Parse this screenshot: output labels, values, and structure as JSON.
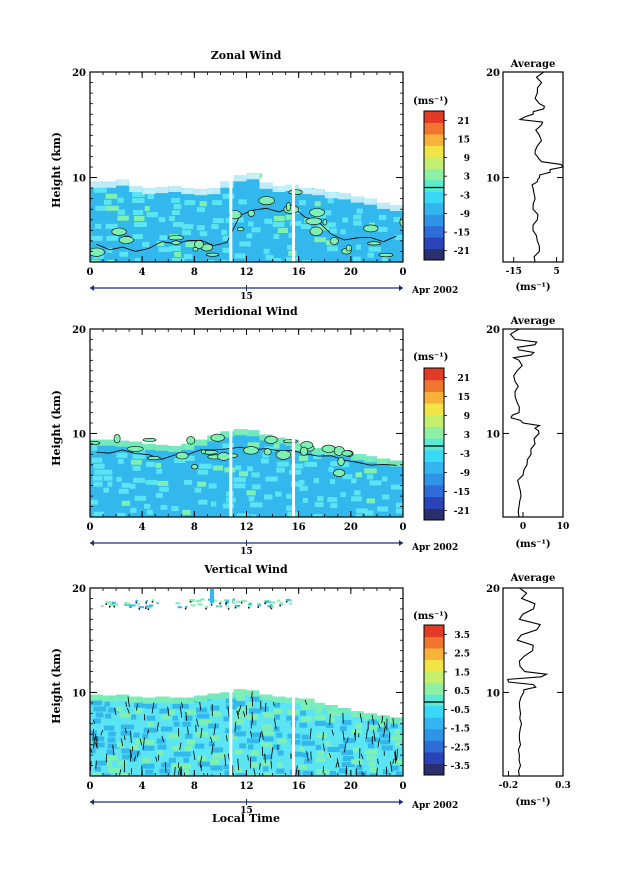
{
  "colors": {
    "scale": [
      "#2b2f6e",
      "#2a44b8",
      "#2e6cd8",
      "#2f93e6",
      "#33b6f0",
      "#38d8f7",
      "#5de8d2",
      "#8ef0a4",
      "#c5ef6e",
      "#f1e446",
      "#f7b23a",
      "#f0752f",
      "#e23a26"
    ],
    "field_dark": "#33b8ee",
    "field_light": "#5be4f4",
    "field_green": "#7ef0b2"
  },
  "figure": {
    "xlabel": "Local Time",
    "date_label": "Apr 2002",
    "date_tick": "15",
    "panels": [
      {
        "title": "Zonal Wind",
        "ylabel": "Height (km)",
        "unit": "(ms⁻¹)",
        "colorbar_ticks": [
          "21",
          "15",
          "9",
          "3",
          "-3",
          "-9",
          "-15",
          "-21"
        ],
        "profile_title": "Average",
        "profile_xlabel": "(ms⁻¹)",
        "profile_xticks": [
          "-15",
          "5"
        ]
      },
      {
        "title": "Meridional Wind",
        "ylabel": "Height (km)",
        "unit": "(ms⁻¹)",
        "colorbar_ticks": [
          "21",
          "15",
          "9",
          "3",
          "-3",
          "-9",
          "-15",
          "-21"
        ],
        "profile_title": "Average",
        "profile_xlabel": "(ms⁻¹)",
        "profile_xticks": [
          "0",
          "10"
        ]
      },
      {
        "title": "Vertical Wind",
        "ylabel": "Height (km)",
        "unit": "(ms⁻¹)",
        "colorbar_ticks": [
          "3.5",
          "2.5",
          "1.5",
          "0.5",
          "-0.5",
          "-1.5",
          "-2.5",
          "-3.5"
        ],
        "profile_title": "Average",
        "profile_xlabel": "(ms⁻¹)",
        "profile_xticks": [
          "-0.2",
          "0.3"
        ]
      }
    ]
  },
  "chart_data": [
    {
      "type": "heatmap",
      "title": "Zonal Wind",
      "ylabel": "Height (km)",
      "xlabel": "",
      "x_ticks": [
        "0",
        "4",
        "8",
        "12",
        "16",
        "20",
        "0"
      ],
      "y_ticks": [
        "10",
        "20"
      ],
      "xlim": [
        0,
        24
      ],
      "ylim": [
        2,
        20
      ],
      "colorbar": {
        "unit": "(ms⁻¹)",
        "range": [
          -24,
          24
        ],
        "ticks": [
          21,
          15,
          9,
          3,
          -3,
          -9,
          -15,
          -21
        ]
      },
      "field": {
        "top_height": [
          9.6,
          9.6,
          9.8,
          9.2,
          9.0,
          9.1,
          9.2,
          9.0,
          8.9,
          9.0,
          9.6,
          10.2,
          10.4,
          9.5,
          9.2,
          9.3,
          9.0,
          8.9,
          8.6,
          8.5,
          8.2,
          8.0,
          7.6,
          7.4
        ],
        "zero_contour_height": [
          3.5,
          3.3,
          3.6,
          3.1,
          3.2,
          3.8,
          3.6,
          3.9,
          4.0,
          3.7,
          3.8,
          6.5,
          6.8,
          7.0,
          6.8,
          7.3,
          6.2,
          5.8,
          4.6,
          4.0,
          4.2,
          4.5,
          4.0,
          4.4
        ],
        "gap_times": [
          10.8,
          15.6
        ]
      },
      "profile": {
        "title": "Average",
        "xlabel": "(ms⁻¹)",
        "xlim": [
          -20,
          8
        ],
        "xticks": [
          -15,
          5
        ],
        "height": [
          2,
          3,
          4,
          5,
          6,
          7,
          8,
          9,
          9.6,
          10,
          10.5,
          11,
          11.5,
          12,
          12.5,
          13,
          14,
          15,
          15.5,
          16,
          16.5,
          17,
          18,
          19,
          20
        ],
        "value": [
          -5,
          -3,
          -4,
          -6,
          -4,
          -6,
          -5,
          -6,
          -4,
          -3,
          2,
          8,
          -2,
          -4,
          -5,
          -4,
          -3,
          -2,
          -12,
          -6,
          -1,
          -3,
          -4,
          -2,
          -1
        ]
      }
    },
    {
      "type": "heatmap",
      "title": "Meridional Wind",
      "ylabel": "Height (km)",
      "xlabel": "",
      "x_ticks": [
        "0",
        "4",
        "8",
        "12",
        "16",
        "20",
        "0"
      ],
      "y_ticks": [
        "10",
        "20"
      ],
      "xlim": [
        0,
        24
      ],
      "ylim": [
        2,
        20
      ],
      "colorbar": {
        "unit": "(ms⁻¹)",
        "range": [
          -24,
          24
        ],
        "ticks": [
          21,
          15,
          9,
          3,
          -3,
          -9,
          -15,
          -21
        ]
      },
      "field": {
        "top_height": [
          9.4,
          9.4,
          9.3,
          9.2,
          9.0,
          8.9,
          8.8,
          9.0,
          9.4,
          9.8,
          10.2,
          10.4,
          10.3,
          9.9,
          9.6,
          9.4,
          9.0,
          8.6,
          8.5,
          8.4,
          8.0,
          7.8,
          7.6,
          7.4
        ],
        "zero_contour_height": [
          8.4,
          8.2,
          8.5,
          8.0,
          7.9,
          7.7,
          7.8,
          8.0,
          8.3,
          8.4,
          8.5,
          8.6,
          8.5,
          8.4,
          8.4,
          8.3,
          8.1,
          7.8,
          7.7,
          7.5,
          7.2,
          7.0,
          7.0,
          6.8
        ],
        "gap_times": [
          10.8,
          15.6
        ]
      },
      "profile": {
        "title": "Average",
        "xlabel": "(ms⁻¹)",
        "xlim": [
          -5,
          10
        ],
        "xticks": [
          0,
          10
        ],
        "height": [
          2,
          3,
          4,
          5,
          6,
          7,
          8,
          9,
          10,
          10.5,
          11,
          11.5,
          12,
          13,
          14,
          15,
          16,
          17,
          17.5,
          18,
          18.5,
          19,
          20
        ],
        "value": [
          -1,
          -1,
          -0.5,
          -1,
          0,
          1,
          2,
          3,
          4,
          3,
          0,
          -3,
          -1,
          -1.5,
          -2,
          -2,
          -1.5,
          -1,
          2,
          -1,
          3,
          -2,
          -1
        ]
      }
    },
    {
      "type": "heatmap",
      "title": "Vertical Wind",
      "ylabel": "Height (km)",
      "xlabel": "Local Time",
      "x_ticks": [
        "0",
        "4",
        "8",
        "12",
        "16",
        "20",
        "0"
      ],
      "y_ticks": [
        "10",
        "20"
      ],
      "xlim": [
        0,
        24
      ],
      "ylim": [
        2,
        20
      ],
      "colorbar": {
        "unit": "(ms⁻¹)",
        "range": [
          -4,
          4
        ],
        "ticks": [
          3.5,
          2.5,
          1.5,
          0.5,
          -0.5,
          -1.5,
          -2.5,
          -3.5
        ]
      },
      "field": {
        "top_height": [
          9.8,
          9.7,
          9.8,
          9.6,
          9.5,
          9.6,
          9.5,
          9.5,
          9.7,
          9.9,
          10.0,
          10.3,
          10.2,
          9.8,
          9.6,
          9.5,
          9.4,
          9.0,
          8.8,
          8.5,
          8.2,
          8.0,
          7.8,
          7.6
        ],
        "upper_layer_height": [
          18.2,
          19.0
        ],
        "gap_times": [
          10.8,
          15.6
        ]
      },
      "profile": {
        "title": "Average",
        "xlabel": "(ms⁻¹)",
        "xlim": [
          -0.25,
          0.3
        ],
        "xticks": [
          -0.2,
          0.3
        ],
        "height": [
          2,
          3,
          4,
          5,
          6,
          7,
          8,
          9,
          10,
          10.5,
          11,
          11.5,
          12,
          13,
          14,
          15,
          16,
          17,
          18,
          19,
          20
        ],
        "value": [
          -0.1,
          -0.09,
          -0.1,
          -0.09,
          -0.1,
          -0.08,
          -0.09,
          -0.1,
          -0.06,
          0.05,
          -0.2,
          0.1,
          -0.05,
          -0.1,
          0.02,
          -0.12,
          0.06,
          -0.1,
          0.03,
          -0.08,
          -0.1
        ]
      }
    }
  ]
}
